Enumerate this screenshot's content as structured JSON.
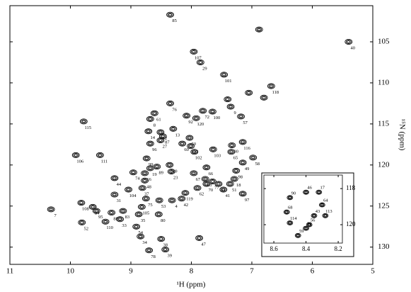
{
  "chart_data": [
    {
      "type": "scatter",
      "xlabel": "¹H (ppm)",
      "ylabel": "¹⁵N (ppm)",
      "xlim": [
        11,
        5
      ],
      "ylim": [
        132.1,
        100.6
      ],
      "xticks": [
        11,
        10,
        9,
        8,
        7,
        6,
        5
      ],
      "yticks": [
        105,
        110,
        115,
        120,
        125,
        130
      ],
      "color": "#000000",
      "x": [
        8.35,
        7.96,
        7.85,
        5.4,
        7.46,
        6.68,
        8.35,
        8.61,
        8.68,
        9.78,
        8.71,
        8.51,
        8.08,
        7.81,
        7.65,
        7.35,
        7.92,
        7.18,
        8.47,
        8.51,
        8.68,
        9.91,
        9.51,
        8.74,
        8.3,
        8.03,
        8.01,
        8.15,
        7.95,
        7.64,
        7.33,
        7.34,
        7.15,
        6.98,
        7.15,
        7.26,
        8.96,
        9.27,
        8.68,
        8.57,
        8.77,
        8.36,
        8.77,
        8.33,
        7.96,
        7.75,
        7.77,
        7.75,
        7.55,
        7.65,
        7.36,
        7.29,
        7.15,
        7.47,
        7.9,
        8.1,
        8.16,
        8.32,
        8.53,
        8.75,
        8.81,
        9.04,
        9.27,
        8.82,
        9.82,
        9.63,
        9.57,
        9.32,
        9.13,
        8.87,
        8.54,
        10.32,
        9.81,
        9.42,
        9.18,
        8.91,
        7.87,
        8.84,
        8.5,
        8.7,
        8.43,
        6.88,
        7.05,
        6.8,
        7.4
      ],
      "values": [
        101.7,
        106.2,
        107.5,
        105.0,
        109.0,
        110.4,
        112.5,
        113.7,
        114.4,
        114.7,
        115.9,
        116.0,
        114.0,
        113.4,
        113.5,
        112.9,
        114.3,
        114.1,
        116.5,
        117.0,
        117.4,
        118.8,
        118.8,
        119.2,
        115.6,
        116.7,
        117.7,
        117.4,
        118.4,
        118.1,
        117.6,
        118.4,
        117.2,
        119.1,
        119.7,
        120.7,
        120.9,
        121.6,
        120.4,
        120.2,
        121.0,
        120.0,
        121.9,
        120.8,
        121.0,
        120.3,
        121.7,
        122.3,
        122.3,
        122.0,
        122.3,
        121.7,
        123.5,
        123.0,
        122.8,
        123.4,
        124.1,
        124.3,
        124.3,
        124.1,
        122.8,
        123.0,
        123.6,
        125.1,
        124.6,
        125.1,
        125.6,
        125.8,
        125.6,
        126.0,
        126.0,
        125.4,
        127.0,
        126.9,
        126.6,
        127.5,
        128.9,
        128.7,
        129.0,
        130.4,
        130.3,
        103.5,
        111.2,
        111.8,
        112.0
      ],
      "point_labels": [
        "85",
        "107",
        "29",
        "40",
        "101",
        "118",
        "76",
        "61",
        "8",
        "115",
        "14",
        "12",
        "92",
        "72",
        "100",
        "9",
        "120",
        "57",
        "87",
        "27",
        "96",
        "106",
        "111",
        "99",
        "13",
        "50",
        "117",
        "60",
        "102",
        "103",
        "30",
        "65",
        "116",
        "58",
        "49",
        "98",
        "74",
        "44",
        "19",
        "89",
        "16",
        "109",
        "48",
        "23",
        "67",
        "66",
        "63",
        "70",
        "93",
        "77",
        "51",
        "18",
        "97",
        "41",
        "62",
        "119",
        "42",
        "4",
        "53",
        "75",
        "37",
        "104",
        "31",
        "105",
        "108",
        "84",
        "95",
        "88",
        "83",
        "35",
        "80",
        "7",
        "52",
        "110",
        "33",
        "54",
        "47",
        "34",
        "38",
        "78",
        "39",
        null,
        null,
        null,
        null
      ]
    },
    {
      "type": "scatter",
      "xlim": [
        8.662,
        8.174
      ],
      "ylim": [
        121.02,
        117.25
      ],
      "xticks": [
        8.6,
        8.4,
        8.2
      ],
      "yticks": [
        118,
        120
      ],
      "color": "#000000",
      "x": [
        8.5,
        8.4,
        8.32,
        8.3,
        8.52,
        8.35,
        8.28,
        8.38,
        8.5,
        8.4,
        8.45
      ],
      "values": [
        118.5,
        118.2,
        118.2,
        118.9,
        119.3,
        119.5,
        119.5,
        120.0,
        119.9,
        120.2,
        120.6
      ],
      "point_labels": [
        "90",
        "46",
        "17",
        "64",
        "68",
        "43",
        "113",
        "56",
        "114",
        "91",
        "59"
      ]
    }
  ]
}
